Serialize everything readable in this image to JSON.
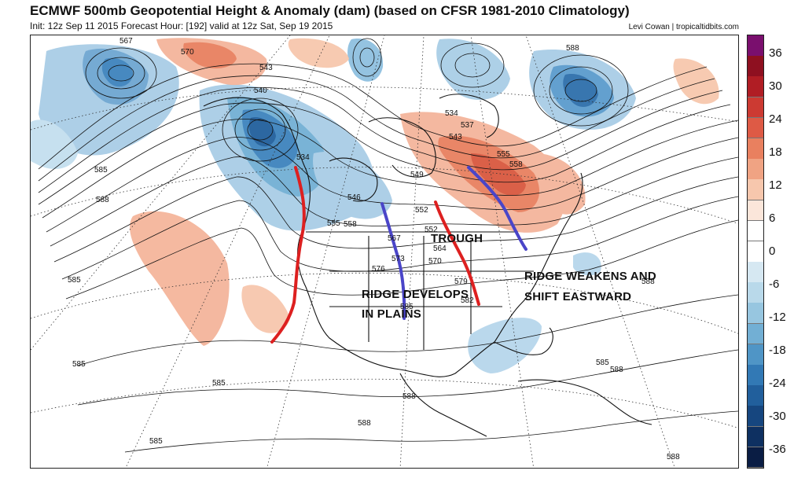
{
  "header": {
    "title": "ECMWF 500mb Geopotential Height & Anomaly (dam) (based on CFSR 1981-2010 Climatology)",
    "subtitle": "Init: 12z Sep 11 2015   Forecast Hour: [192]   valid at 12z Sat, Sep 19 2015",
    "credit": "Levi Cowan | tropicaltidbits.com"
  },
  "colorbar": {
    "tick_labels": [
      "36",
      "30",
      "24",
      "18",
      "12",
      "6",
      "0",
      "-6",
      "-12",
      "-18",
      "-24",
      "-30",
      "-36"
    ],
    "colors": [
      "#7a0f6e",
      "#8e1020",
      "#b01d24",
      "#cc3a32",
      "#de5a45",
      "#e9805f",
      "#f0a383",
      "#f7c7ad",
      "#fbe6da",
      "#ffffff",
      "#ffffff",
      "#d6e8f2",
      "#b9d9ea",
      "#97c6e0",
      "#72afd4",
      "#4f95c6",
      "#3279b5",
      "#215f9c",
      "#16467f",
      "#0e3061",
      "#0a1d44"
    ]
  },
  "annotations": {
    "trough": "TROUGH",
    "ridge_plains_1": "RIDGE DEVELOPS",
    "ridge_plains_2": "IN PLAINS",
    "ridge_east_1": "RIDGE WEAKENS AND",
    "ridge_east_2": "SHIFT EASTWARD"
  },
  "contour_labels": [
    "567",
    "570",
    "543",
    "540",
    "534",
    "585",
    "588",
    "585",
    "546",
    "555",
    "558",
    "552",
    "549",
    "534",
    "537",
    "543",
    "555",
    "558",
    "552",
    "567",
    "570",
    "573",
    "564",
    "576",
    "579",
    "582",
    "585",
    "588",
    "585",
    "585",
    "588",
    "588",
    "585",
    "585",
    "588",
    "588",
    "588"
  ],
  "map": {
    "positive_anomaly_color": "#f2a98d",
    "negative_anomaly_color": "#7fb5da"
  }
}
